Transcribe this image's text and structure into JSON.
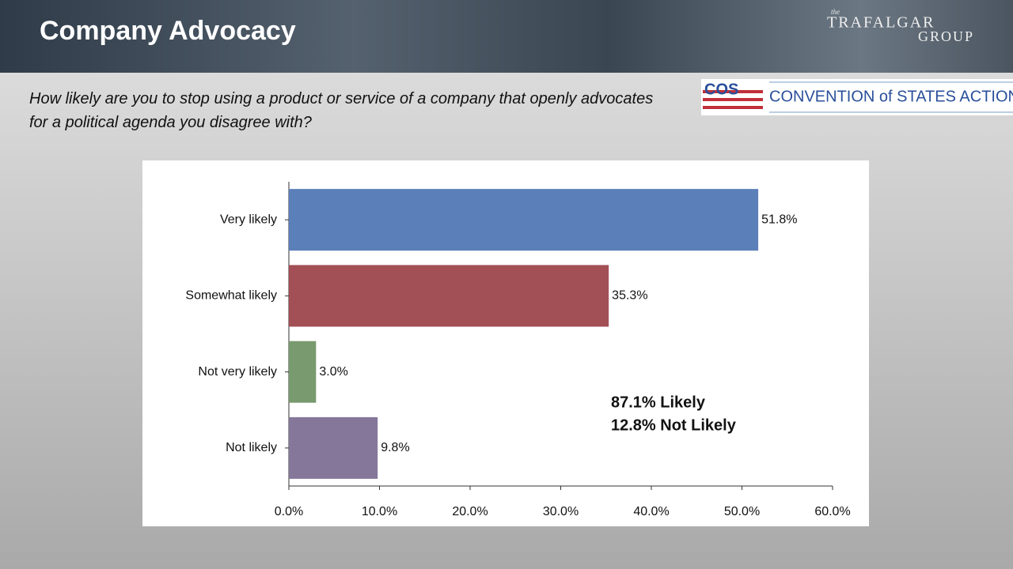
{
  "chart_data": {
    "type": "bar",
    "orientation": "horizontal",
    "title": "Company Advocacy",
    "subtitle": "How likely are you to stop using a product or service of a company that openly advocates for a political agenda you disagree with?",
    "categories": [
      "Very likely",
      "Somewhat likely",
      "Not very likely",
      "Not likely"
    ],
    "values": [
      51.8,
      35.3,
      3.0,
      9.8
    ],
    "value_labels": [
      "51.8%",
      "35.3%",
      "3.0%",
      "9.8%"
    ],
    "colors": [
      "#5b7fb8",
      "#a24f56",
      "#789a6e",
      "#85779a"
    ],
    "xlim": [
      0,
      60
    ],
    "xticks": [
      {
        "value": 0,
        "label": "0.0%"
      },
      {
        "value": 10,
        "label": "10.0%"
      },
      {
        "value": 20,
        "label": "20.0%"
      },
      {
        "value": 30,
        "label": "30.0%"
      },
      {
        "value": 40,
        "label": "40.0%"
      },
      {
        "value": 50,
        "label": "50.0%"
      },
      {
        "value": 60,
        "label": "60.0%"
      }
    ],
    "grid": false,
    "annotations": [
      "87.1% Likely",
      "12.8% Not Likely"
    ]
  },
  "branding": {
    "trafalgar_the": "the",
    "trafalgar": "TRAFALGAR",
    "group": "GROUP",
    "cos": "COS",
    "cos_name": "CONVENTION of STATES ACTION"
  }
}
